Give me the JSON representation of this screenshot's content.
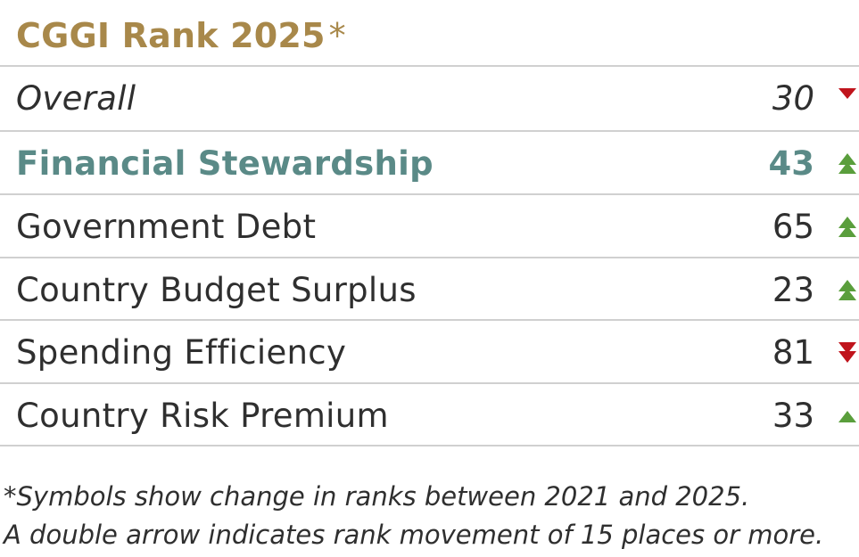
{
  "title": "CGGI Rank 2025",
  "title_asterisk": "*",
  "colors": {
    "title": "#a8884a",
    "highlight": "#5a8a87",
    "text": "#2f2f2f",
    "up": "#5a9e3c",
    "down": "#c0141c",
    "rule": "#d0d0d0"
  },
  "rows": [
    {
      "label": "Overall",
      "rank": "30",
      "change": "down",
      "arrows": 1,
      "style": "italic"
    },
    {
      "label": "Financial Stewardship",
      "rank": "43",
      "change": "up",
      "arrows": 2,
      "style": "highlight"
    },
    {
      "label": "Government Debt",
      "rank": "65",
      "change": "up",
      "arrows": 2,
      "style": "normal"
    },
    {
      "label": "Country Budget Surplus",
      "rank": "23",
      "change": "up",
      "arrows": 2,
      "style": "normal"
    },
    {
      "label": "Spending Efficiency",
      "rank": "81",
      "change": "down",
      "arrows": 2,
      "style": "normal"
    },
    {
      "label": "Country Risk Premium",
      "rank": "33",
      "change": "up",
      "arrows": 1,
      "style": "normal"
    }
  ],
  "footnote": {
    "line1": "*Symbols show change in ranks between 2021 and 2025.",
    "line2": "A double arrow indicates rank movement of 15 places or more."
  }
}
